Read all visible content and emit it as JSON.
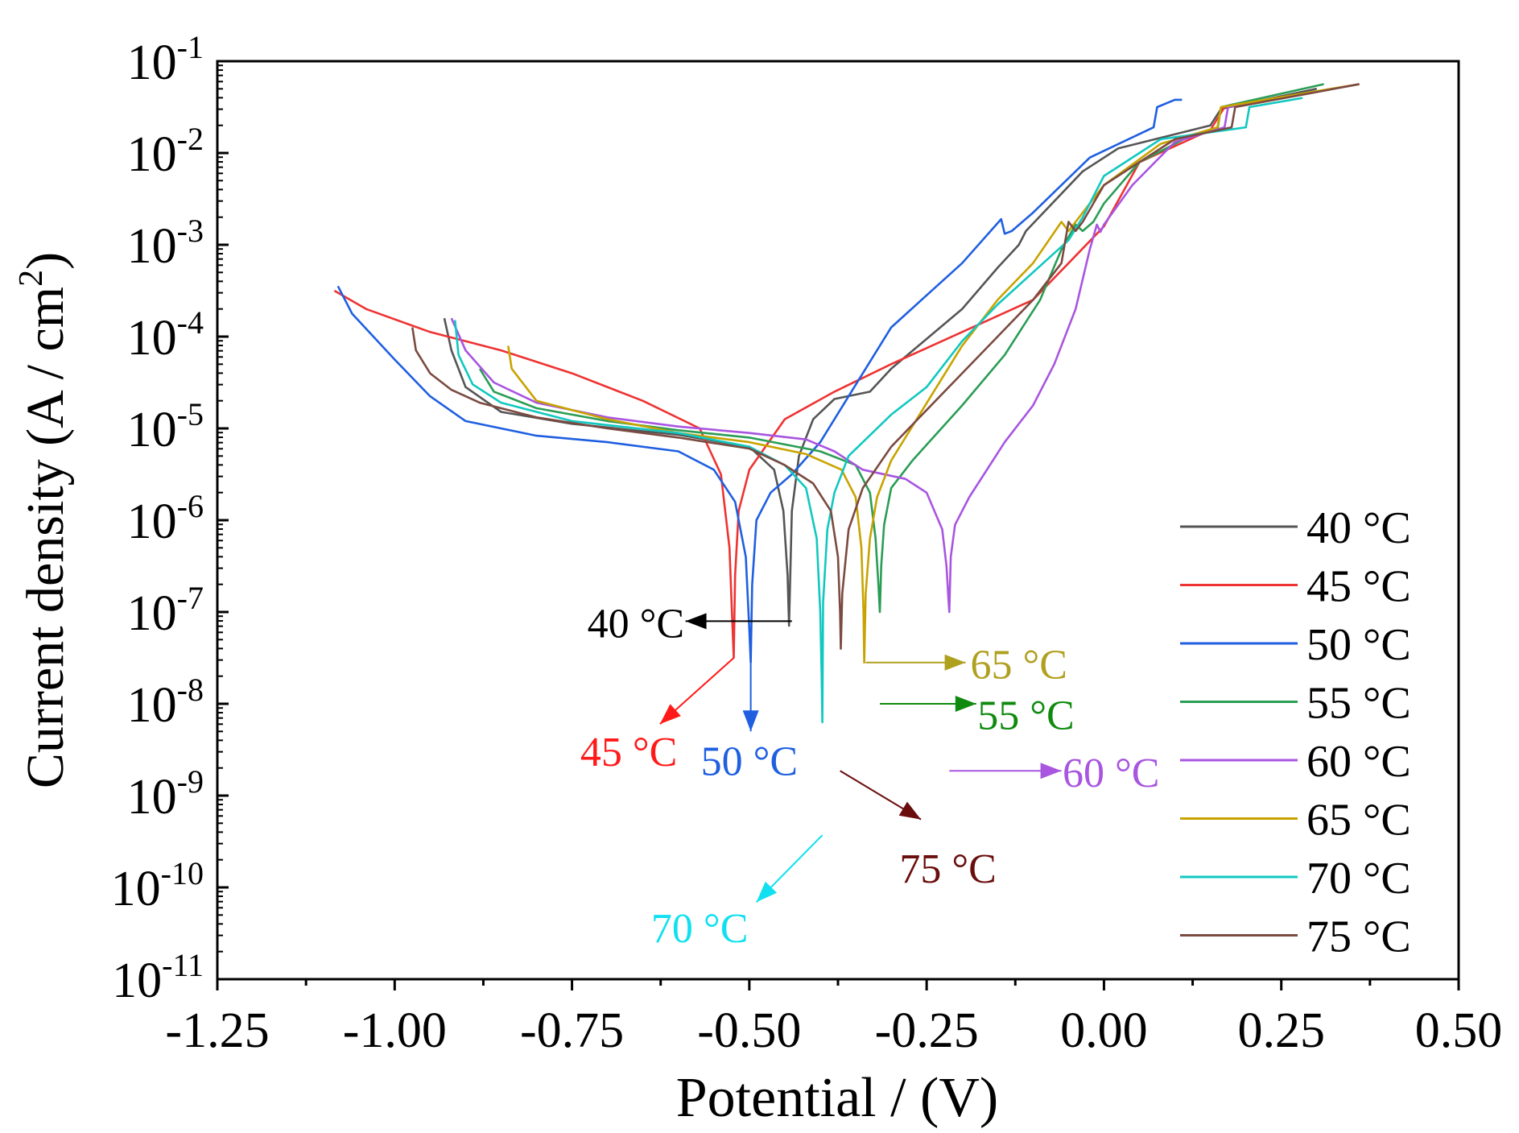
{
  "chart_data": {
    "type": "line",
    "xlabel": "Potential / (V)",
    "ylabel_prefix": "Current density (A / cm",
    "ylabel_exp": "2",
    "ylabel_suffix": ")",
    "xlim": [
      -1.25,
      0.5
    ],
    "ylim_log10": [
      -11,
      -1
    ],
    "x_ticks": [
      {
        "value": -1.25,
        "label": "-1.25"
      },
      {
        "value": -1.0,
        "label": "-1.00"
      },
      {
        "value": -0.75,
        "label": "-0.75"
      },
      {
        "value": -0.5,
        "label": "-0.50"
      },
      {
        "value": -0.25,
        "label": "-0.25"
      },
      {
        "value": 0.0,
        "label": "0.00"
      },
      {
        "value": 0.25,
        "label": "0.25"
      },
      {
        "value": 0.5,
        "label": "0.50"
      }
    ],
    "y_ticks": [
      {
        "exp": -1,
        "base": "10",
        "sup": "-1"
      },
      {
        "exp": -2,
        "base": "10",
        "sup": "-2"
      },
      {
        "exp": -3,
        "base": "10",
        "sup": "-3"
      },
      {
        "exp": -4,
        "base": "10",
        "sup": "-4"
      },
      {
        "exp": -5,
        "base": "10",
        "sup": "-5"
      },
      {
        "exp": -6,
        "base": "10",
        "sup": "-6"
      },
      {
        "exp": -7,
        "base": "10",
        "sup": "-7"
      },
      {
        "exp": -8,
        "base": "10",
        "sup": "-8"
      },
      {
        "exp": -9,
        "base": "10",
        "sup": "-9"
      },
      {
        "exp": -10,
        "base": "10",
        "sup": "-10"
      },
      {
        "exp": -11,
        "base": "10",
        "sup": "-11"
      }
    ],
    "legend_position": "right-bottom",
    "series": [
      {
        "name": "40 °C",
        "color": "#555555",
        "points": [
          [
            -0.93,
            -3.8
          ],
          [
            -0.92,
            -4.15
          ],
          [
            -0.9,
            -4.55
          ],
          [
            -0.85,
            -4.82
          ],
          [
            -0.75,
            -4.95
          ],
          [
            -0.6,
            -5.07
          ],
          [
            -0.5,
            -5.2
          ],
          [
            -0.465,
            -5.45
          ],
          [
            -0.452,
            -5.9
          ],
          [
            -0.446,
            -6.6
          ],
          [
            -0.444,
            -7.15
          ],
          [
            -0.442,
            -6.5
          ],
          [
            -0.44,
            -5.9
          ],
          [
            -0.43,
            -5.3
          ],
          [
            -0.41,
            -4.9
          ],
          [
            -0.38,
            -4.68
          ],
          [
            -0.33,
            -4.6
          ],
          [
            -0.3,
            -4.35
          ],
          [
            -0.2,
            -3.7
          ],
          [
            -0.15,
            -3.25
          ],
          [
            -0.12,
            -3.0
          ],
          [
            -0.11,
            -2.85
          ],
          [
            -0.03,
            -2.2
          ],
          [
            0.02,
            -1.95
          ],
          [
            0.15,
            -1.7
          ],
          [
            0.165,
            -1.52
          ],
          [
            0.3,
            -1.3
          ]
        ]
      },
      {
        "name": "45 °C",
        "color": "#ee3333",
        "points": [
          [
            -1.085,
            -3.5
          ],
          [
            -1.04,
            -3.7
          ],
          [
            -0.95,
            -3.95
          ],
          [
            -0.85,
            -4.15
          ],
          [
            -0.75,
            -4.4
          ],
          [
            -0.65,
            -4.7
          ],
          [
            -0.57,
            -5.0
          ],
          [
            -0.54,
            -5.5
          ],
          [
            -0.528,
            -6.3
          ],
          [
            -0.524,
            -7.1
          ],
          [
            -0.522,
            -7.5
          ],
          [
            -0.52,
            -6.6
          ],
          [
            -0.515,
            -5.9
          ],
          [
            -0.5,
            -5.45
          ],
          [
            -0.45,
            -4.9
          ],
          [
            -0.38,
            -4.6
          ],
          [
            -0.3,
            -4.3
          ],
          [
            -0.2,
            -3.95
          ],
          [
            -0.1,
            -3.6
          ],
          [
            -0.05,
            -3.2
          ],
          [
            0.0,
            -2.8
          ],
          [
            0.05,
            -2.1
          ],
          [
            0.15,
            -1.75
          ],
          [
            0.17,
            -1.5
          ],
          [
            0.36,
            -1.25
          ]
        ]
      },
      {
        "name": "50 °C",
        "color": "#1f5fe0",
        "points": [
          [
            -1.08,
            -3.45
          ],
          [
            -1.06,
            -3.75
          ],
          [
            -1.0,
            -4.25
          ],
          [
            -0.95,
            -4.65
          ],
          [
            -0.9,
            -4.92
          ],
          [
            -0.8,
            -5.08
          ],
          [
            -0.7,
            -5.15
          ],
          [
            -0.6,
            -5.25
          ],
          [
            -0.55,
            -5.45
          ],
          [
            -0.52,
            -5.8
          ],
          [
            -0.505,
            -6.4
          ],
          [
            -0.5,
            -7.2
          ],
          [
            -0.498,
            -7.55
          ],
          [
            -0.496,
            -6.7
          ],
          [
            -0.49,
            -6.0
          ],
          [
            -0.47,
            -5.7
          ],
          [
            -0.44,
            -5.5
          ],
          [
            -0.4,
            -5.15
          ],
          [
            -0.36,
            -4.65
          ],
          [
            -0.3,
            -3.9
          ],
          [
            -0.25,
            -3.55
          ],
          [
            -0.2,
            -3.2
          ],
          [
            -0.145,
            -2.72
          ],
          [
            -0.14,
            -2.88
          ],
          [
            -0.13,
            -2.85
          ],
          [
            -0.1,
            -2.65
          ],
          [
            -0.02,
            -2.05
          ],
          [
            0.07,
            -1.72
          ],
          [
            0.075,
            -1.5
          ],
          [
            0.1,
            -1.42
          ],
          [
            0.11,
            -1.42
          ]
        ]
      },
      {
        "name": "55 °C",
        "color": "#2a9d55",
        "points": [
          [
            -0.88,
            -4.35
          ],
          [
            -0.86,
            -4.6
          ],
          [
            -0.8,
            -4.78
          ],
          [
            -0.7,
            -4.92
          ],
          [
            -0.6,
            -5.02
          ],
          [
            -0.5,
            -5.1
          ],
          [
            -0.4,
            -5.25
          ],
          [
            -0.35,
            -5.4
          ],
          [
            -0.33,
            -5.7
          ],
          [
            -0.322,
            -6.2
          ],
          [
            -0.318,
            -6.7
          ],
          [
            -0.316,
            -7.0
          ],
          [
            -0.314,
            -6.5
          ],
          [
            -0.31,
            -6.05
          ],
          [
            -0.3,
            -5.65
          ],
          [
            -0.27,
            -5.35
          ],
          [
            -0.2,
            -4.75
          ],
          [
            -0.14,
            -4.2
          ],
          [
            -0.09,
            -3.6
          ],
          [
            -0.06,
            -3.05
          ],
          [
            -0.04,
            -2.78
          ],
          [
            -0.03,
            -2.85
          ],
          [
            -0.015,
            -2.75
          ],
          [
            0.0,
            -2.55
          ],
          [
            0.05,
            -2.1
          ],
          [
            0.12,
            -1.82
          ],
          [
            0.16,
            -1.75
          ],
          [
            0.165,
            -1.5
          ],
          [
            0.31,
            -1.25
          ]
        ]
      },
      {
        "name": "60 °C",
        "color": "#a855e0",
        "points": [
          [
            -0.92,
            -3.8
          ],
          [
            -0.9,
            -4.15
          ],
          [
            -0.86,
            -4.5
          ],
          [
            -0.8,
            -4.72
          ],
          [
            -0.7,
            -4.88
          ],
          [
            -0.6,
            -4.98
          ],
          [
            -0.5,
            -5.05
          ],
          [
            -0.42,
            -5.12
          ],
          [
            -0.38,
            -5.25
          ],
          [
            -0.34,
            -5.45
          ],
          [
            -0.28,
            -5.55
          ],
          [
            -0.25,
            -5.7
          ],
          [
            -0.228,
            -6.1
          ],
          [
            -0.222,
            -6.5
          ],
          [
            -0.219,
            -6.9
          ],
          [
            -0.218,
            -7.0
          ],
          [
            -0.216,
            -6.4
          ],
          [
            -0.21,
            -6.05
          ],
          [
            -0.19,
            -5.75
          ],
          [
            -0.14,
            -5.15
          ],
          [
            -0.1,
            -4.75
          ],
          [
            -0.07,
            -4.3
          ],
          [
            -0.04,
            -3.7
          ],
          [
            -0.02,
            -3.05
          ],
          [
            -0.01,
            -2.78
          ],
          [
            -0.005,
            -2.86
          ],
          [
            0.0,
            -2.78
          ],
          [
            0.04,
            -2.35
          ],
          [
            0.1,
            -1.88
          ],
          [
            0.17,
            -1.72
          ],
          [
            0.175,
            -1.5
          ],
          [
            0.36,
            -1.25
          ]
        ]
      },
      {
        "name": "65 °C",
        "color": "#c8a300",
        "points": [
          [
            -0.84,
            -4.1
          ],
          [
            -0.835,
            -4.35
          ],
          [
            -0.8,
            -4.7
          ],
          [
            -0.7,
            -4.9
          ],
          [
            -0.6,
            -5.05
          ],
          [
            -0.5,
            -5.15
          ],
          [
            -0.42,
            -5.28
          ],
          [
            -0.37,
            -5.45
          ],
          [
            -0.35,
            -5.75
          ],
          [
            -0.342,
            -6.3
          ],
          [
            -0.339,
            -7.0
          ],
          [
            -0.338,
            -7.55
          ],
          [
            -0.336,
            -6.8
          ],
          [
            -0.33,
            -6.2
          ],
          [
            -0.32,
            -5.75
          ],
          [
            -0.3,
            -5.35
          ],
          [
            -0.26,
            -4.85
          ],
          [
            -0.2,
            -4.1
          ],
          [
            -0.15,
            -3.6
          ],
          [
            -0.1,
            -3.2
          ],
          [
            -0.06,
            -2.75
          ],
          [
            -0.05,
            -2.85
          ],
          [
            -0.04,
            -2.75
          ],
          [
            0.0,
            -2.35
          ],
          [
            0.08,
            -1.9
          ],
          [
            0.16,
            -1.72
          ],
          [
            0.165,
            -1.5
          ],
          [
            0.36,
            -1.25
          ]
        ]
      },
      {
        "name": "70 °C",
        "color": "#11c8c0",
        "points": [
          [
            -0.915,
            -3.82
          ],
          [
            -0.91,
            -4.2
          ],
          [
            -0.89,
            -4.52
          ],
          [
            -0.85,
            -4.72
          ],
          [
            -0.75,
            -4.92
          ],
          [
            -0.6,
            -5.05
          ],
          [
            -0.5,
            -5.2
          ],
          [
            -0.45,
            -5.4
          ],
          [
            -0.42,
            -5.65
          ],
          [
            -0.405,
            -6.2
          ],
          [
            -0.4,
            -7.0
          ],
          [
            -0.398,
            -7.7
          ],
          [
            -0.397,
            -8.2
          ],
          [
            -0.396,
            -6.9
          ],
          [
            -0.39,
            -6.1
          ],
          [
            -0.38,
            -5.7
          ],
          [
            -0.36,
            -5.3
          ],
          [
            -0.3,
            -4.85
          ],
          [
            -0.25,
            -4.55
          ],
          [
            -0.2,
            -4.05
          ],
          [
            -0.15,
            -3.65
          ],
          [
            -0.1,
            -3.3
          ],
          [
            -0.05,
            -2.95
          ],
          [
            -0.03,
            -2.7
          ],
          [
            0.0,
            -2.25
          ],
          [
            0.08,
            -1.85
          ],
          [
            0.2,
            -1.72
          ],
          [
            0.205,
            -1.5
          ],
          [
            0.28,
            -1.4
          ]
        ]
      },
      {
        "name": "75 °C",
        "color": "#7b4a40",
        "points": [
          [
            -0.975,
            -3.9
          ],
          [
            -0.97,
            -4.15
          ],
          [
            -0.95,
            -4.4
          ],
          [
            -0.92,
            -4.58
          ],
          [
            -0.88,
            -4.72
          ],
          [
            -0.8,
            -4.88
          ],
          [
            -0.7,
            -5.0
          ],
          [
            -0.6,
            -5.1
          ],
          [
            -0.5,
            -5.22
          ],
          [
            -0.45,
            -5.4
          ],
          [
            -0.41,
            -5.6
          ],
          [
            -0.385,
            -5.9
          ],
          [
            -0.375,
            -6.4
          ],
          [
            -0.372,
            -7.0
          ],
          [
            -0.371,
            -7.4
          ],
          [
            -0.369,
            -6.8
          ],
          [
            -0.36,
            -6.1
          ],
          [
            -0.34,
            -5.65
          ],
          [
            -0.3,
            -5.2
          ],
          [
            -0.25,
            -4.8
          ],
          [
            -0.2,
            -4.4
          ],
          [
            -0.15,
            -4.0
          ],
          [
            -0.1,
            -3.6
          ],
          [
            -0.06,
            -3.2
          ],
          [
            -0.05,
            -2.75
          ],
          [
            -0.04,
            -2.85
          ],
          [
            -0.03,
            -2.75
          ],
          [
            0.0,
            -2.35
          ],
          [
            0.1,
            -1.85
          ],
          [
            0.18,
            -1.72
          ],
          [
            0.185,
            -1.5
          ],
          [
            0.36,
            -1.25
          ]
        ]
      }
    ],
    "annotations": [
      {
        "label": "40 °C",
        "color": "#000000",
        "start": [
          -0.44,
          -7.1
        ],
        "end": [
          -0.59,
          -7.1
        ],
        "text_at": [
          -0.66,
          -7.1
        ]
      },
      {
        "label": "45 °C",
        "color": "#ff1a1a",
        "start": [
          -0.522,
          -7.5
        ],
        "end": [
          -0.626,
          -8.22
        ],
        "text_at": [
          -0.67,
          -8.5
        ]
      },
      {
        "label": "50 °C",
        "color": "#1f5fe0",
        "start": [
          -0.498,
          -7.5
        ],
        "end": [
          -0.498,
          -8.3
        ],
        "text_at": [
          -0.5,
          -8.6
        ]
      },
      {
        "label": "65 °C",
        "color": "#b0a020",
        "start": [
          -0.336,
          -7.55
        ],
        "end": [
          -0.195,
          -7.55
        ],
        "text_at": [
          -0.12,
          -7.55
        ]
      },
      {
        "label": "55 °C",
        "color": "#0f8a0f",
        "start": [
          -0.316,
          -8.0
        ],
        "end": [
          -0.18,
          -8.0
        ],
        "text_at": [
          -0.11,
          -8.1
        ]
      },
      {
        "label": "60 °C",
        "color": "#a855e0",
        "start": [
          -0.218,
          -8.73
        ],
        "end": [
          -0.06,
          -8.73
        ],
        "text_at": [
          0.01,
          -8.73
        ]
      },
      {
        "label": "70 °C",
        "color": "#11e0f0",
        "start": [
          -0.397,
          -9.43
        ],
        "end": [
          -0.49,
          -10.16
        ],
        "text_at": [
          -0.57,
          -10.42
        ]
      },
      {
        "label": "75 °C",
        "color": "#6a0d0d",
        "start": [
          -0.372,
          -8.73
        ],
        "end": [
          -0.258,
          -9.26
        ],
        "text_at": [
          -0.22,
          -9.77
        ]
      }
    ]
  }
}
